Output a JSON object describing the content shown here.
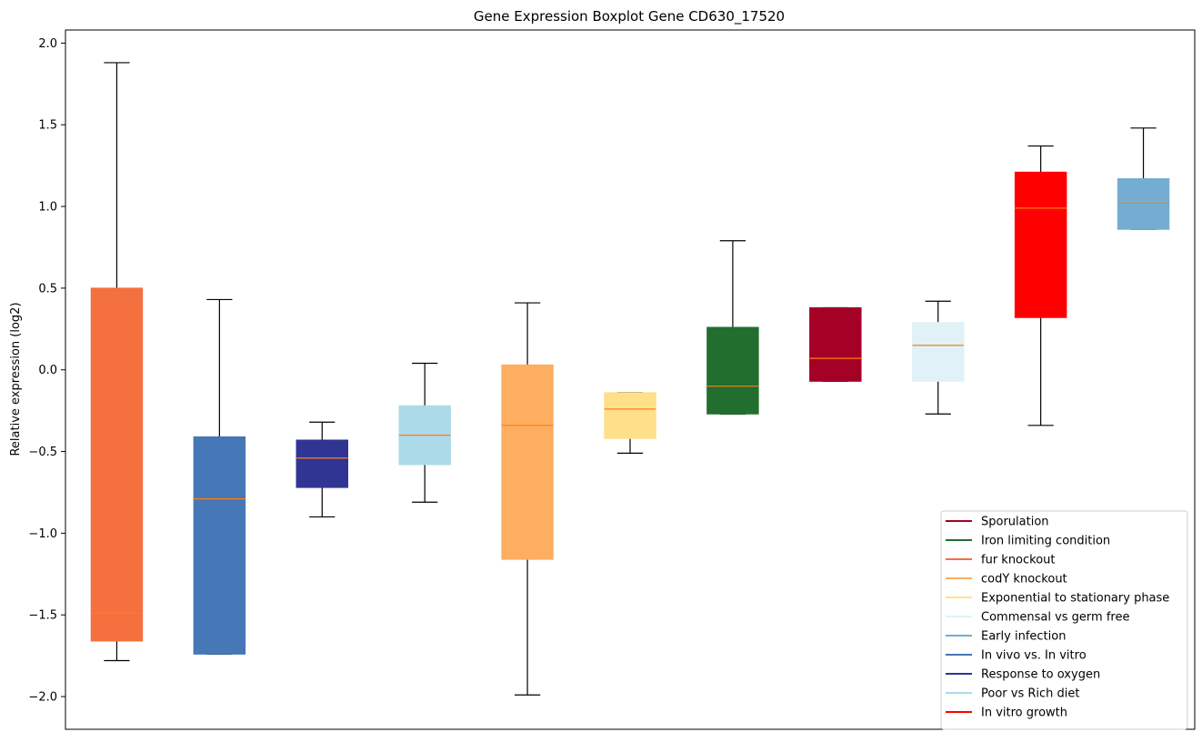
{
  "chart_data": {
    "type": "boxplot",
    "title": "Gene Expression Boxplot Gene CD630_17520",
    "xlabel": "",
    "ylabel": "Relative expression (log2)",
    "ylim": [
      -2.2,
      2.08
    ],
    "yticks": [
      2.0,
      1.5,
      1.0,
      0.5,
      0.0,
      -0.5,
      -1.0,
      -1.5,
      -2.0
    ],
    "ytick_labels": [
      "2.0",
      "1.5",
      "1.0",
      "0.5",
      "0.0",
      "−0.5",
      "−1.0",
      "−1.5",
      "−2.0"
    ],
    "grid": false,
    "legend_position": "lower-right",
    "boxes": [
      {
        "color": "#f4703f",
        "whisker_low": -1.78,
        "q1": -1.66,
        "median": -1.49,
        "q3": 0.5,
        "whisker_high": 1.88
      },
      {
        "color": "#4677b6",
        "whisker_low": -1.74,
        "q1": -1.74,
        "median": -0.79,
        "q3": -0.41,
        "whisker_high": 0.43
      },
      {
        "color": "#303593",
        "whisker_low": -0.9,
        "q1": -0.72,
        "median": -0.54,
        "q3": -0.43,
        "whisker_high": -0.32
      },
      {
        "color": "#acdae8",
        "whisker_low": -0.81,
        "q1": -0.58,
        "median": -0.4,
        "q3": -0.22,
        "whisker_high": 0.04
      },
      {
        "color": "#fdae61",
        "whisker_low": -1.99,
        "q1": -1.16,
        "median": -0.34,
        "q3": 0.03,
        "whisker_high": 0.41
      },
      {
        "color": "#fee08b",
        "whisker_low": -0.51,
        "q1": -0.42,
        "median": -0.24,
        "q3": -0.14,
        "whisker_high": -0.14
      },
      {
        "color": "#226e2f",
        "whisker_low": -0.27,
        "q1": -0.27,
        "median": -0.1,
        "q3": 0.26,
        "whisker_high": 0.79
      },
      {
        "color": "#a50026",
        "whisker_low": -0.07,
        "q1": -0.07,
        "median": 0.07,
        "q3": 0.38,
        "whisker_high": 0.38
      },
      {
        "color": "#e0f2f8",
        "whisker_low": -0.27,
        "q1": -0.07,
        "median": 0.15,
        "q3": 0.29,
        "whisker_high": 0.42
      },
      {
        "color": "#ff0000",
        "whisker_low": -0.34,
        "q1": 0.32,
        "median": 0.99,
        "q3": 1.21,
        "whisker_high": 1.37
      },
      {
        "color": "#74add1",
        "whisker_low": 0.86,
        "q1": 0.86,
        "median": 1.02,
        "q3": 1.17,
        "whisker_high": 1.48
      }
    ],
    "median_color": "#ff7f0e",
    "legend": [
      {
        "label": "Sporulation",
        "color": "#a50026"
      },
      {
        "label": "Iron limiting condition",
        "color": "#226e2f"
      },
      {
        "label": "fur knockout",
        "color": "#f4703f"
      },
      {
        "label": "codY knockout",
        "color": "#fdae61"
      },
      {
        "label": "Exponential to stationary phase",
        "color": "#fee08b"
      },
      {
        "label": "Commensal vs germ free",
        "color": "#e0f2f8"
      },
      {
        "label": "Early infection",
        "color": "#74add1"
      },
      {
        "label": "In vivo vs. In vitro",
        "color": "#4677b6"
      },
      {
        "label": "Response to oxygen",
        "color": "#303593"
      },
      {
        "label": "Poor vs Rich diet",
        "color": "#acdae8"
      },
      {
        "label": "In vitro growth",
        "color": "#ff0000"
      }
    ]
  }
}
